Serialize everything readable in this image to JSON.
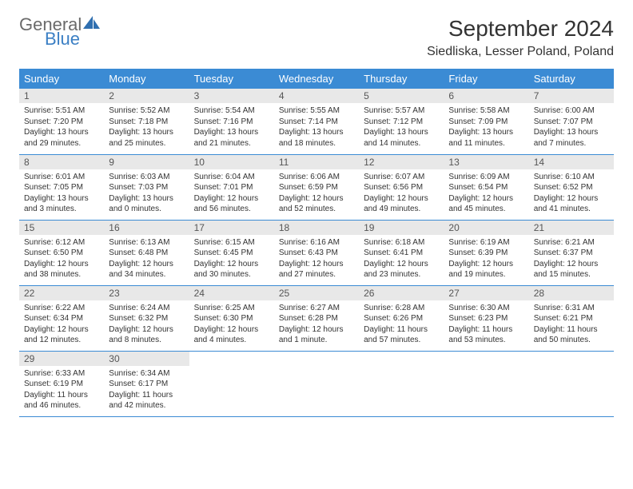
{
  "logo": {
    "text1": "General",
    "text2": "Blue"
  },
  "title": "September 2024",
  "location": "Siedliska, Lesser Poland, Poland",
  "colors": {
    "header_bg": "#3b8bd4",
    "header_text": "#ffffff",
    "daynum_bg": "#e8e8e8",
    "row_border": "#3b8bd4",
    "logo_gray": "#6a6a6a",
    "logo_blue": "#3b7fc4",
    "body_text": "#333333",
    "page_bg": "#ffffff"
  },
  "typography": {
    "title_fontsize": 28,
    "location_fontsize": 16,
    "weekday_fontsize": 13,
    "daynum_fontsize": 12,
    "body_fontsize": 10,
    "logo_fontsize": 22
  },
  "weekdays": [
    "Sunday",
    "Monday",
    "Tuesday",
    "Wednesday",
    "Thursday",
    "Friday",
    "Saturday"
  ],
  "weeks": [
    [
      {
        "n": "1",
        "sunrise": "Sunrise: 5:51 AM",
        "sunset": "Sunset: 7:20 PM",
        "daylight": "Daylight: 13 hours and 29 minutes."
      },
      {
        "n": "2",
        "sunrise": "Sunrise: 5:52 AM",
        "sunset": "Sunset: 7:18 PM",
        "daylight": "Daylight: 13 hours and 25 minutes."
      },
      {
        "n": "3",
        "sunrise": "Sunrise: 5:54 AM",
        "sunset": "Sunset: 7:16 PM",
        "daylight": "Daylight: 13 hours and 21 minutes."
      },
      {
        "n": "4",
        "sunrise": "Sunrise: 5:55 AM",
        "sunset": "Sunset: 7:14 PM",
        "daylight": "Daylight: 13 hours and 18 minutes."
      },
      {
        "n": "5",
        "sunrise": "Sunrise: 5:57 AM",
        "sunset": "Sunset: 7:12 PM",
        "daylight": "Daylight: 13 hours and 14 minutes."
      },
      {
        "n": "6",
        "sunrise": "Sunrise: 5:58 AM",
        "sunset": "Sunset: 7:09 PM",
        "daylight": "Daylight: 13 hours and 11 minutes."
      },
      {
        "n": "7",
        "sunrise": "Sunrise: 6:00 AM",
        "sunset": "Sunset: 7:07 PM",
        "daylight": "Daylight: 13 hours and 7 minutes."
      }
    ],
    [
      {
        "n": "8",
        "sunrise": "Sunrise: 6:01 AM",
        "sunset": "Sunset: 7:05 PM",
        "daylight": "Daylight: 13 hours and 3 minutes."
      },
      {
        "n": "9",
        "sunrise": "Sunrise: 6:03 AM",
        "sunset": "Sunset: 7:03 PM",
        "daylight": "Daylight: 13 hours and 0 minutes."
      },
      {
        "n": "10",
        "sunrise": "Sunrise: 6:04 AM",
        "sunset": "Sunset: 7:01 PM",
        "daylight": "Daylight: 12 hours and 56 minutes."
      },
      {
        "n": "11",
        "sunrise": "Sunrise: 6:06 AM",
        "sunset": "Sunset: 6:59 PM",
        "daylight": "Daylight: 12 hours and 52 minutes."
      },
      {
        "n": "12",
        "sunrise": "Sunrise: 6:07 AM",
        "sunset": "Sunset: 6:56 PM",
        "daylight": "Daylight: 12 hours and 49 minutes."
      },
      {
        "n": "13",
        "sunrise": "Sunrise: 6:09 AM",
        "sunset": "Sunset: 6:54 PM",
        "daylight": "Daylight: 12 hours and 45 minutes."
      },
      {
        "n": "14",
        "sunrise": "Sunrise: 6:10 AM",
        "sunset": "Sunset: 6:52 PM",
        "daylight": "Daylight: 12 hours and 41 minutes."
      }
    ],
    [
      {
        "n": "15",
        "sunrise": "Sunrise: 6:12 AM",
        "sunset": "Sunset: 6:50 PM",
        "daylight": "Daylight: 12 hours and 38 minutes."
      },
      {
        "n": "16",
        "sunrise": "Sunrise: 6:13 AM",
        "sunset": "Sunset: 6:48 PM",
        "daylight": "Daylight: 12 hours and 34 minutes."
      },
      {
        "n": "17",
        "sunrise": "Sunrise: 6:15 AM",
        "sunset": "Sunset: 6:45 PM",
        "daylight": "Daylight: 12 hours and 30 minutes."
      },
      {
        "n": "18",
        "sunrise": "Sunrise: 6:16 AM",
        "sunset": "Sunset: 6:43 PM",
        "daylight": "Daylight: 12 hours and 27 minutes."
      },
      {
        "n": "19",
        "sunrise": "Sunrise: 6:18 AM",
        "sunset": "Sunset: 6:41 PM",
        "daylight": "Daylight: 12 hours and 23 minutes."
      },
      {
        "n": "20",
        "sunrise": "Sunrise: 6:19 AM",
        "sunset": "Sunset: 6:39 PM",
        "daylight": "Daylight: 12 hours and 19 minutes."
      },
      {
        "n": "21",
        "sunrise": "Sunrise: 6:21 AM",
        "sunset": "Sunset: 6:37 PM",
        "daylight": "Daylight: 12 hours and 15 minutes."
      }
    ],
    [
      {
        "n": "22",
        "sunrise": "Sunrise: 6:22 AM",
        "sunset": "Sunset: 6:34 PM",
        "daylight": "Daylight: 12 hours and 12 minutes."
      },
      {
        "n": "23",
        "sunrise": "Sunrise: 6:24 AM",
        "sunset": "Sunset: 6:32 PM",
        "daylight": "Daylight: 12 hours and 8 minutes."
      },
      {
        "n": "24",
        "sunrise": "Sunrise: 6:25 AM",
        "sunset": "Sunset: 6:30 PM",
        "daylight": "Daylight: 12 hours and 4 minutes."
      },
      {
        "n": "25",
        "sunrise": "Sunrise: 6:27 AM",
        "sunset": "Sunset: 6:28 PM",
        "daylight": "Daylight: 12 hours and 1 minute."
      },
      {
        "n": "26",
        "sunrise": "Sunrise: 6:28 AM",
        "sunset": "Sunset: 6:26 PM",
        "daylight": "Daylight: 11 hours and 57 minutes."
      },
      {
        "n": "27",
        "sunrise": "Sunrise: 6:30 AM",
        "sunset": "Sunset: 6:23 PM",
        "daylight": "Daylight: 11 hours and 53 minutes."
      },
      {
        "n": "28",
        "sunrise": "Sunrise: 6:31 AM",
        "sunset": "Sunset: 6:21 PM",
        "daylight": "Daylight: 11 hours and 50 minutes."
      }
    ],
    [
      {
        "n": "29",
        "sunrise": "Sunrise: 6:33 AM",
        "sunset": "Sunset: 6:19 PM",
        "daylight": "Daylight: 11 hours and 46 minutes."
      },
      {
        "n": "30",
        "sunrise": "Sunrise: 6:34 AM",
        "sunset": "Sunset: 6:17 PM",
        "daylight": "Daylight: 11 hours and 42 minutes."
      },
      null,
      null,
      null,
      null,
      null
    ]
  ]
}
